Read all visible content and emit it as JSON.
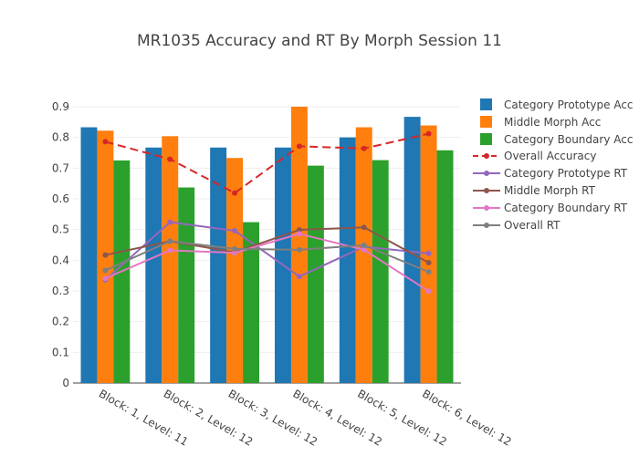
{
  "chart_data": {
    "type": "bar",
    "title": "MR1035 Accuracy and RT By Morph Session 11",
    "categories": [
      "Block: 1, Level: 11",
      "Block: 2, Level: 12",
      "Block: 3, Level: 12",
      "Block: 4, Level: 12",
      "Block: 5, Level: 12",
      "Block: 6, Level: 12"
    ],
    "ylim": [
      0,
      0.9
    ],
    "yticks": [
      "0",
      "0.1",
      "0.2",
      "0.3",
      "0.4",
      "0.5",
      "0.6",
      "0.7",
      "0.8",
      "0.9"
    ],
    "grid": true,
    "legend_position": "right",
    "bar_series": [
      {
        "name": "Category Prototype Acc",
        "color": "#1f77b4",
        "values": [
          0.833,
          0.767,
          0.767,
          0.767,
          0.8,
          0.867
        ]
      },
      {
        "name": "Middle Morph Acc",
        "color": "#ff7f0e",
        "values": [
          0.822,
          0.804,
          0.733,
          0.9,
          0.833,
          0.839
        ]
      },
      {
        "name": "Category Boundary Acc",
        "color": "#2ca02c",
        "values": [
          0.725,
          0.637,
          0.524,
          0.708,
          0.726,
          0.758
        ]
      }
    ],
    "line_series": [
      {
        "name": "Overall Accuracy",
        "color": "#d62728",
        "dash": true,
        "values": [
          0.786,
          0.729,
          0.619,
          0.771,
          0.764,
          0.812
        ]
      },
      {
        "name": "Category Prototype RT",
        "color": "#9467bd",
        "dash": false,
        "values": [
          0.336,
          0.524,
          0.496,
          0.347,
          0.444,
          0.422
        ]
      },
      {
        "name": "Middle Morph RT",
        "color": "#8c564b",
        "dash": false,
        "values": [
          0.417,
          0.462,
          0.426,
          0.499,
          0.507,
          0.392
        ]
      },
      {
        "name": "Category Boundary RT",
        "color": "#e377c2",
        "dash": false,
        "values": [
          0.341,
          0.432,
          0.424,
          0.486,
          0.434,
          0.299
        ]
      },
      {
        "name": "Overall RT",
        "color": "#7f7f7f",
        "dash": false,
        "values": [
          0.367,
          0.462,
          0.437,
          0.434,
          0.449,
          0.362
        ]
      }
    ]
  }
}
